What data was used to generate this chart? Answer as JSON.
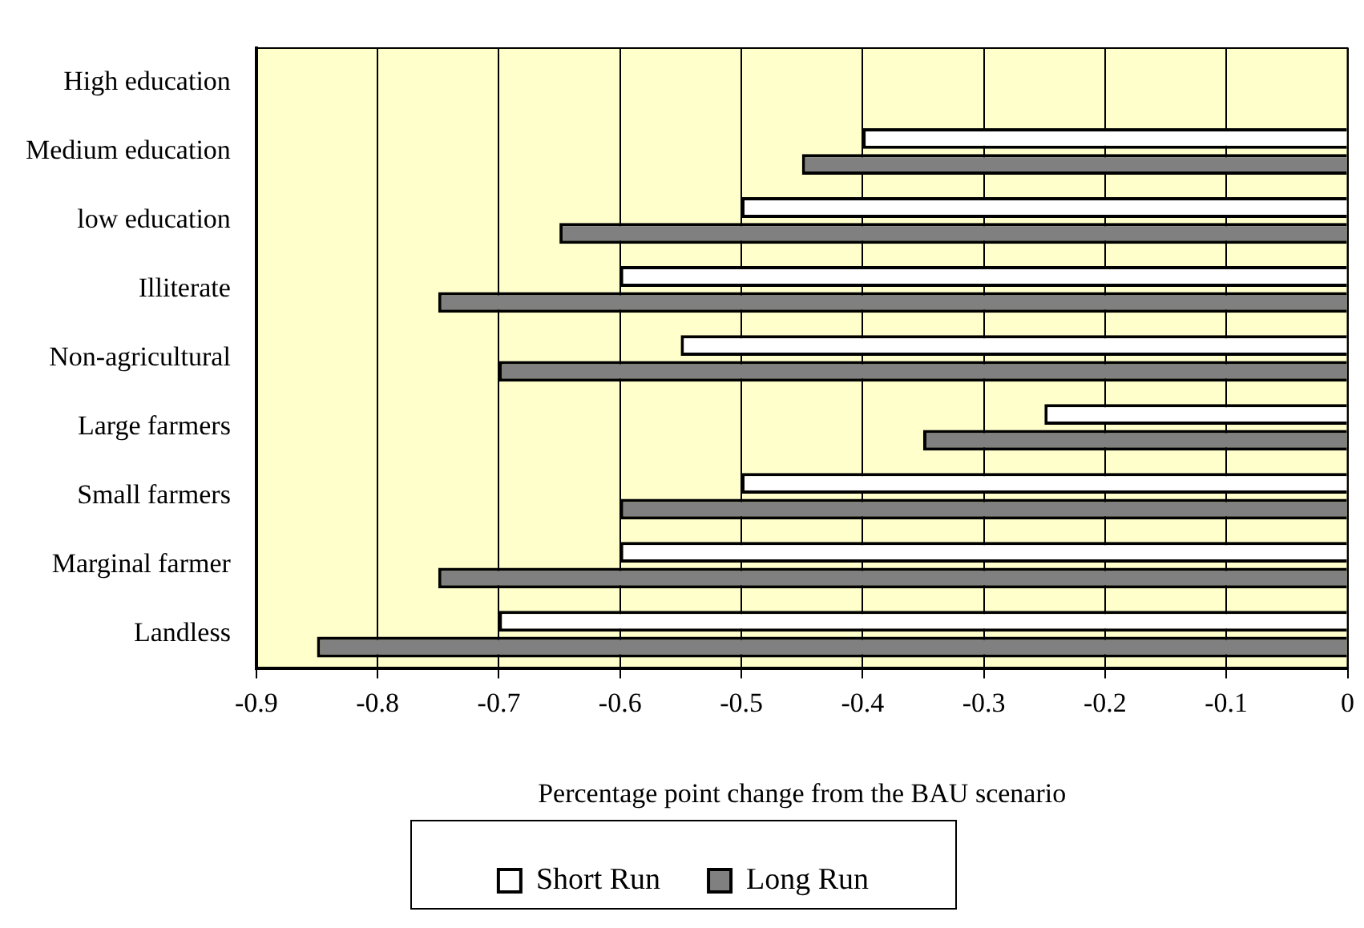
{
  "chart_data": {
    "type": "bar",
    "orientation": "horizontal",
    "xlabel": "Percentage point change from the BAU scenario",
    "categories": [
      "High education",
      "Medium education",
      "low education",
      "Illiterate",
      "Non-agricultural",
      "Large farmers",
      "Small farmers",
      "Marginal farmer",
      "Landless"
    ],
    "series": [
      {
        "name": "Short Run",
        "color": "#ffffff",
        "values": [
          0,
          -0.4,
          -0.5,
          -0.6,
          -0.55,
          -0.25,
          -0.5,
          -0.6,
          -0.7
        ]
      },
      {
        "name": "Long Run",
        "color": "#808080",
        "values": [
          0,
          -0.45,
          -0.65,
          -0.75,
          -0.7,
          -0.35,
          -0.6,
          -0.75,
          -0.85
        ]
      }
    ],
    "xlim": [
      -0.9,
      0
    ],
    "xticks": [
      -0.9,
      -0.8,
      -0.7,
      -0.6,
      -0.5,
      -0.4,
      -0.3,
      -0.2,
      -0.1,
      0
    ],
    "grid": "x",
    "legend": "bottom"
  }
}
